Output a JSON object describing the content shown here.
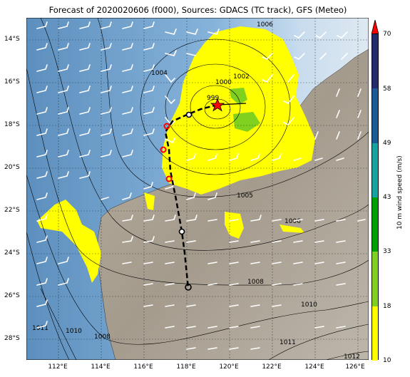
{
  "title": "Forecast of 2020020606 (f000), Sources: GDACS (TC track), GFS (Meteo)",
  "lat_ticks": [
    "14°S",
    "16°S",
    "18°S",
    "20°S",
    "22°S",
    "24°S",
    "26°S",
    "28°S"
  ],
  "lon_ticks": [
    "112°E",
    "114°E",
    "116°E",
    "118°E",
    "120°E",
    "122°E",
    "124°E",
    "126°E"
  ],
  "colorbar": {
    "label": "10 m wind speed (m/s)",
    "ticks": [
      "10",
      "18",
      "33",
      "43",
      "49",
      "58",
      "70"
    ],
    "colors": [
      "#ffff00",
      "#7fd01f",
      "#00a000",
      "#14a2a2",
      "#1c5a96",
      "#232c6a"
    ],
    "extend_color": "#ff0000"
  },
  "isobar_labels": [
    "1006",
    "1004",
    "1002",
    "1000",
    "999",
    "1005",
    "1006",
    "1008",
    "1010",
    "1011",
    "1010",
    "1008",
    "1011",
    "1012"
  ],
  "track_colors": {
    "observed": "#ff0000",
    "forecast": "#000000"
  }
}
